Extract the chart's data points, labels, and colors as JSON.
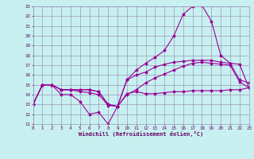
{
  "x": [
    0,
    1,
    2,
    3,
    4,
    5,
    6,
    7,
    8,
    9,
    10,
    11,
    12,
    13,
    14,
    15,
    16,
    17,
    18,
    19,
    20,
    21,
    22,
    23
  ],
  "line1": [
    13,
    15,
    15,
    14,
    14,
    13.3,
    12,
    12.2,
    11,
    12.8,
    14.1,
    14.3,
    14.1,
    14.1,
    14.2,
    14.3,
    14.3,
    14.4,
    14.4,
    14.4,
    14.4,
    14.5,
    14.5,
    14.7
  ],
  "line2": [
    13,
    15,
    15,
    14.5,
    14.5,
    14.5,
    14.5,
    14.3,
    13,
    12.8,
    15.5,
    16.0,
    16.3,
    16.8,
    17.1,
    17.3,
    17.4,
    17.5,
    17.5,
    17.5,
    17.3,
    17.2,
    15.5,
    15.2
  ],
  "line3": [
    13,
    15,
    15,
    14.5,
    14.5,
    14.5,
    14.5,
    14.3,
    13,
    12.8,
    15.5,
    16.5,
    17.2,
    17.8,
    18.5,
    20.0,
    22.2,
    23.0,
    23.1,
    21.5,
    18.0,
    17.2,
    17.1,
    14.7
  ],
  "line4": [
    13,
    15,
    15,
    14.5,
    14.5,
    14.3,
    14.2,
    14.0,
    12.9,
    12.8,
    14.0,
    14.5,
    15.2,
    15.7,
    16.1,
    16.5,
    16.9,
    17.2,
    17.3,
    17.2,
    17.1,
    17.0,
    15.3,
    14.7
  ],
  "bg_color": "#c8f0f0",
  "line_color": "#990099",
  "grid_color": "#9999bb",
  "xlabel": "Windchill (Refroidissement éolien,°C)",
  "ylim": [
    11,
    23
  ],
  "xlim": [
    0,
    23
  ],
  "yticks": [
    11,
    12,
    13,
    14,
    15,
    16,
    17,
    18,
    19,
    20,
    21,
    22,
    23
  ],
  "xticks": [
    0,
    1,
    2,
    3,
    4,
    5,
    6,
    7,
    8,
    9,
    10,
    11,
    12,
    13,
    14,
    15,
    16,
    17,
    18,
    19,
    20,
    21,
    22,
    23
  ],
  "label_color": "#660066"
}
